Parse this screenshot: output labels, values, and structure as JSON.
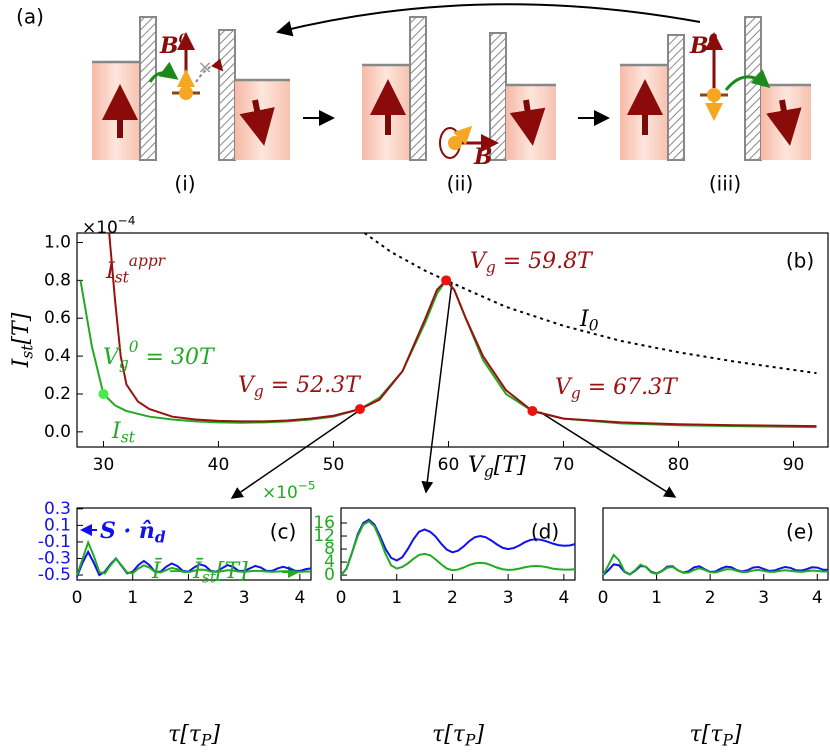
{
  "diagram": {
    "panel_label": "(a)",
    "steps": [
      "(i)",
      "(ii)",
      "(iii)"
    ],
    "fields": [
      [
        {
          "t": "B"
        },
        {
          "sup": "0"
        }
      ],
      [
        {
          "t": "B"
        }
      ],
      [
        {
          "t": "B"
        },
        {
          "sup": "0"
        }
      ]
    ]
  },
  "chart_data": [
    {
      "type": "line",
      "panel_label": "(b)",
      "x_label": [
        {
          "t": "V"
        },
        {
          "sub": "g"
        },
        {
          "t": "[T]"
        }
      ],
      "y_label": [
        {
          "t": "I"
        },
        {
          "sub": "st"
        },
        {
          "t": "[T]"
        }
      ],
      "y_multiplier": [
        {
          "t": "×10"
        },
        {
          "sup": "−4"
        }
      ],
      "xlim": [
        27.7,
        93
      ],
      "ylim": [
        -0.08,
        1.05
      ],
      "xticks": [
        30,
        40,
        50,
        60,
        70,
        80,
        90
      ],
      "yticks": [
        {
          "value": 0,
          "label": "0.0"
        },
        0.2,
        0.4,
        0.6,
        0.8,
        {
          "value": 1,
          "label": "1.0"
        }
      ],
      "series": [
        {
          "name": [
            {
              "t": "I"
            },
            {
              "sub": "st"
            }
          ],
          "color": "#22aa22",
          "x": [
            28,
            29,
            30,
            31,
            32,
            34,
            36,
            38,
            40,
            42,
            44,
            46,
            48,
            50,
            52.3,
            54,
            56,
            58,
            59,
            59.8,
            60.5,
            61.5,
            63,
            65,
            67.3,
            70,
            75,
            80,
            85,
            92
          ],
          "values": [
            0.8,
            0.45,
            0.2,
            0.14,
            0.11,
            0.08,
            0.065,
            0.055,
            0.05,
            0.048,
            0.05,
            0.055,
            0.065,
            0.08,
            0.12,
            0.18,
            0.32,
            0.58,
            0.73,
            0.8,
            0.75,
            0.6,
            0.38,
            0.2,
            0.11,
            0.07,
            0.045,
            0.035,
            0.03,
            0.025
          ]
        },
        {
          "name": [
            {
              "t": "I"
            },
            {
              "sub": "st"
            },
            {
              "sup": "appr"
            }
          ],
          "color": "#991111",
          "x": [
            30.5,
            31,
            31.5,
            32,
            33,
            34,
            36,
            38,
            40,
            42,
            44,
            46,
            48,
            50,
            52.3,
            54,
            56,
            58,
            59,
            59.8,
            60.5,
            61.5,
            63,
            65,
            67.3,
            70,
            75,
            80,
            85,
            92
          ],
          "values": [
            1.05,
            0.7,
            0.4,
            0.25,
            0.16,
            0.12,
            0.08,
            0.065,
            0.058,
            0.055,
            0.055,
            0.06,
            0.07,
            0.085,
            0.12,
            0.17,
            0.32,
            0.6,
            0.75,
            0.8,
            0.75,
            0.6,
            0.4,
            0.22,
            0.11,
            0.07,
            0.05,
            0.04,
            0.035,
            0.03
          ]
        },
        {
          "name": [
            {
              "t": "I"
            },
            {
              "sub": "0"
            }
          ],
          "color": "#000000",
          "dash": true,
          "x": [
            52.7,
            55,
            58,
            59.8,
            62,
            65,
            70,
            75,
            80,
            85,
            92
          ],
          "values": [
            1.05,
            0.95,
            0.85,
            0.8,
            0.74,
            0.66,
            0.56,
            0.48,
            0.42,
            0.37,
            0.31
          ]
        }
      ],
      "points": [
        {
          "x": 30,
          "y": 0.2,
          "color": "#44ee44",
          "label_color": "#22aa22",
          "label": [
            {
              "t": "V"
            },
            {
              "sub": "g"
            },
            {
              "sup": "0"
            },
            {
              "t": " = 30T"
            }
          ]
        },
        {
          "x": 52.3,
          "y": 0.12,
          "color": "#ee1111",
          "label_color": "#991111",
          "label": [
            {
              "t": "V"
            },
            {
              "sub": "g"
            },
            {
              "t": " = 52.3T"
            }
          ]
        },
        {
          "x": 59.8,
          "y": 0.8,
          "color": "#ee1111",
          "label_color": "#991111",
          "label": [
            {
              "t": "V"
            },
            {
              "sub": "g"
            },
            {
              "t": " = 59.8T"
            }
          ]
        },
        {
          "x": 67.3,
          "y": 0.11,
          "color": "#ee1111",
          "label_color": "#991111",
          "label": [
            {
              "t": "V"
            },
            {
              "sub": "g"
            },
            {
              "t": " = 67.3T"
            }
          ]
        }
      ]
    },
    {
      "type": "line",
      "panel_label": "(c)",
      "x_label": [
        {
          "t": "τ[τ"
        },
        {
          "sub": "P"
        },
        {
          "t": "]"
        }
      ],
      "xlim": [
        0,
        4.2
      ],
      "ylim": [
        -0.56,
        0.31
      ],
      "y2lim": [
        -1.5,
        20.6
      ],
      "xticks": [
        0,
        1,
        2,
        3,
        4
      ],
      "yticks": [
        -0.5,
        -0.3,
        -0.1,
        0.1,
        0.3
      ],
      "ytick_color": "#1111ee",
      "x": [
        0,
        0.1,
        0.2,
        0.3,
        0.4,
        0.5,
        0.6,
        0.7,
        0.8,
        0.9,
        1,
        1.1,
        1.2,
        1.3,
        1.4,
        1.5,
        1.6,
        1.7,
        1.8,
        1.9,
        2,
        2.1,
        2.2,
        2.3,
        2.4,
        2.5,
        2.6,
        2.7,
        2.8,
        2.9,
        3,
        3.1,
        3.2,
        3.3,
        3.4,
        3.5,
        3.6,
        3.7,
        3.8,
        3.9,
        4,
        4.1,
        4.2
      ],
      "series": [
        {
          "name": [
            {
              "t": "S · n̂"
            },
            {
              "sub": "d"
            }
          ],
          "color": "#1111ee",
          "values": [
            -0.52,
            -0.35,
            -0.22,
            -0.35,
            -0.5,
            -0.46,
            -0.37,
            -0.3,
            -0.39,
            -0.48,
            -0.46,
            -0.38,
            -0.33,
            -0.38,
            -0.46,
            -0.46,
            -0.4,
            -0.36,
            -0.39,
            -0.45,
            -0.46,
            -0.41,
            -0.37,
            -0.39,
            -0.45,
            -0.46,
            -0.42,
            -0.38,
            -0.4,
            -0.45,
            -0.45,
            -0.42,
            -0.39,
            -0.41,
            -0.45,
            -0.45,
            -0.42,
            -0.4,
            -0.42,
            -0.45,
            -0.45,
            -0.43,
            -0.42
          ]
        },
        {
          "name": [
            {
              "t": "Ī − Ī"
            },
            {
              "sub": "st"
            },
            {
              "t": "[T]"
            }
          ],
          "color": "#22aa22",
          "axis": "y2",
          "values": [
            0,
            5,
            10,
            6,
            1,
            0.5,
            3,
            5,
            3,
            0.8,
            0.6,
            2,
            3,
            2.3,
            1,
            0.8,
            1.5,
            2.2,
            1.8,
            1,
            0.9,
            1.3,
            1.7,
            1.6,
            1.1,
            1,
            1.2,
            1.5,
            1.4,
            1.1,
            1,
            1.2,
            1.3,
            1.3,
            1.1,
            1,
            1.1,
            1.2,
            1.2,
            1.1,
            1,
            1.1,
            1.1
          ]
        }
      ]
    },
    {
      "type": "line",
      "panel_label": "(d)",
      "x_label": [
        {
          "t": "τ[τ"
        },
        {
          "sub": "P"
        },
        {
          "t": "]"
        }
      ],
      "y_multiplier": [
        {
          "t": "×10"
        },
        {
          "sup": "−5"
        }
      ],
      "y_multiplier_color": "#22aa22",
      "xlim": [
        0,
        4.2
      ],
      "ylim": [
        -1.5,
        20.6
      ],
      "xticks": [
        0,
        1,
        2,
        3,
        4
      ],
      "yticks": [
        0,
        4,
        8,
        12,
        16
      ],
      "ytick_color": "#22aa22",
      "x": [
        0,
        0.1,
        0.2,
        0.3,
        0.4,
        0.5,
        0.6,
        0.7,
        0.8,
        0.9,
        1,
        1.1,
        1.2,
        1.3,
        1.4,
        1.5,
        1.6,
        1.7,
        1.8,
        1.9,
        2,
        2.1,
        2.2,
        2.3,
        2.4,
        2.5,
        2.6,
        2.7,
        2.8,
        2.9,
        3,
        3.1,
        3.2,
        3.3,
        3.4,
        3.5,
        3.6,
        3.7,
        3.8,
        3.9,
        4,
        4.1,
        4.2
      ],
      "series": [
        {
          "color": "#1111ee",
          "values": [
            0,
            2,
            7,
            12.5,
            16,
            17,
            15.5,
            12,
            8,
            5.3,
            4.5,
            5.5,
            8,
            11,
            13.3,
            14,
            13.3,
            11.8,
            9.6,
            7.8,
            7,
            7.5,
            8.8,
            10.4,
            11.6,
            12,
            11.6,
            10.6,
            9.4,
            8.4,
            8,
            8.3,
            9.1,
            10.1,
            10.8,
            11,
            10.8,
            10.3,
            9.7,
            9.2,
            9,
            9.1,
            9.5
          ]
        },
        {
          "color": "#22aa22",
          "values": [
            0,
            2,
            7,
            12,
            15.5,
            16.5,
            15,
            11,
            6.5,
            3,
            2,
            2.5,
            3.6,
            5,
            6.2,
            6.5,
            6.1,
            4.8,
            3.3,
            2,
            1.5,
            1.7,
            2.3,
            3.1,
            3.6,
            3.8,
            3.6,
            3,
            2.3,
            1.8,
            1.6,
            1.7,
            2,
            2.4,
            2.7,
            2.8,
            2.7,
            2.4,
            2,
            1.8,
            1.7,
            1.7,
            1.8
          ]
        }
      ]
    },
    {
      "type": "line",
      "panel_label": "(e)",
      "x_label": [
        {
          "t": "τ[τ"
        },
        {
          "sub": "P"
        },
        {
          "t": "]"
        }
      ],
      "xlim": [
        0,
        4.2
      ],
      "ylim": [
        -1.5,
        20.6
      ],
      "xticks": [
        0,
        1,
        2,
        3,
        4
      ],
      "x": [
        0,
        0.1,
        0.2,
        0.3,
        0.4,
        0.5,
        0.6,
        0.7,
        0.8,
        0.9,
        1,
        1.1,
        1.2,
        1.3,
        1.4,
        1.5,
        1.6,
        1.7,
        1.8,
        1.9,
        2,
        2.1,
        2.2,
        2.3,
        2.4,
        2.5,
        2.6,
        2.7,
        2.8,
        2.9,
        3,
        3.1,
        3.2,
        3.3,
        3.4,
        3.5,
        3.6,
        3.7,
        3.8,
        3.9,
        4,
        4.1,
        4.2
      ],
      "series": [
        {
          "color": "#1111ee",
          "values": [
            0,
            1.5,
            3.3,
            3,
            1,
            0.2,
            1.3,
            2.8,
            2.6,
            1,
            0.5,
            1.3,
            2.6,
            2.7,
            1.4,
            0.8,
            1.2,
            2.4,
            2.7,
            1.8,
            1,
            1.1,
            2,
            2.6,
            2.4,
            1.5,
            1.1,
            1.5,
            2.3,
            2.5,
            1.9,
            1.3,
            1.4,
            2,
            2.5,
            2.2,
            1.5,
            1.4,
            1.8,
            2.4,
            2.3,
            1.7,
            1.6
          ]
        },
        {
          "color": "#22aa22",
          "values": [
            0,
            3,
            6.2,
            4.5,
            1.2,
            0.3,
            1.5,
            3.2,
            2.5,
            0.8,
            0.4,
            1.2,
            2.3,
            2.5,
            1.5,
            0.7,
            0.8,
            1.6,
            2.1,
            1.6,
            0.9,
            0.8,
            1.3,
            1.8,
            1.8,
            1.3,
            0.9,
            1,
            1.4,
            1.6,
            1.3,
            1,
            1,
            1.3,
            1.5,
            1.3,
            1.1,
            1,
            1.2,
            1.4,
            1.3,
            1.1,
            1.1
          ]
        }
      ]
    }
  ]
}
